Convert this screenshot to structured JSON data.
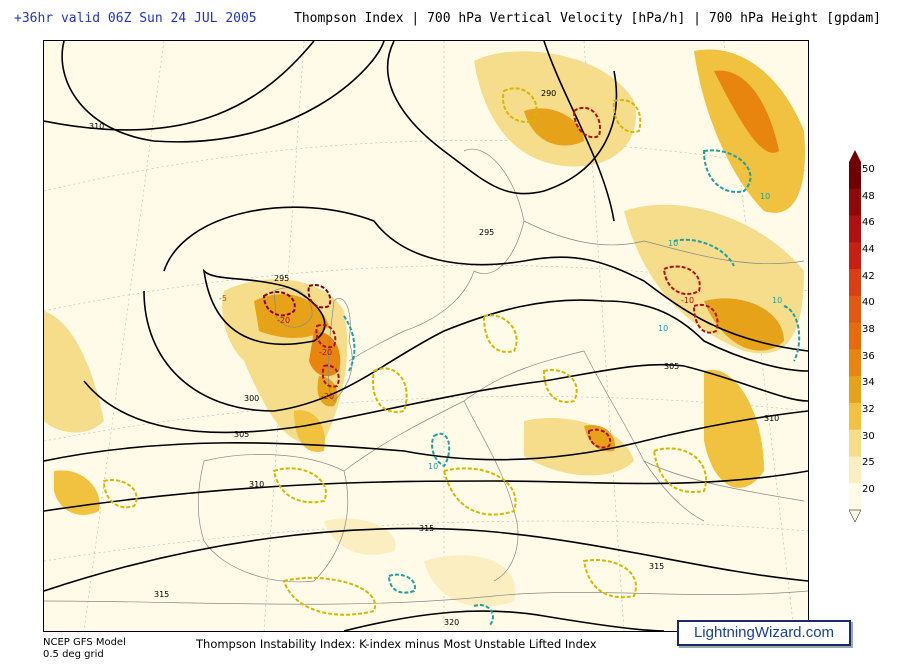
{
  "header": {
    "valid_time": "+36hr valid 06Z Sun 24 JUL 2005",
    "fields": "Thompson Index | 700 hPa Vertical Velocity [hPa/h] | 700 hPa Height [gpdam]"
  },
  "colorbar": {
    "ticks": [
      "50",
      "48",
      "46",
      "44",
      "42",
      "40",
      "38",
      "36",
      "34",
      "32",
      "30",
      "25",
      "20"
    ],
    "colors": [
      "#fffbe8",
      "#fbeec0",
      "#f6dd8c",
      "#f0c240",
      "#e6a319",
      "#e8850f",
      "#e86a0c",
      "#e25a12",
      "#d84012",
      "#c82010",
      "#b01010",
      "#900808",
      "#700000"
    ]
  },
  "height_labels": [
    "310",
    "290",
    "295",
    "295",
    "300",
    "305",
    "305",
    "310",
    "310",
    "315",
    "315",
    "315",
    "320"
  ],
  "velocity_labels": [
    "-20",
    "-20",
    "-20",
    "-10",
    "10",
    "10",
    "10",
    "10",
    "10",
    "-5"
  ],
  "footer": {
    "model": "NCEP GFS Model",
    "grid": "0.5 deg grid",
    "description": "Thompson Instability Index: K-index minus Most Unstable Lifted Index",
    "brand": "LightningWizard.com"
  }
}
